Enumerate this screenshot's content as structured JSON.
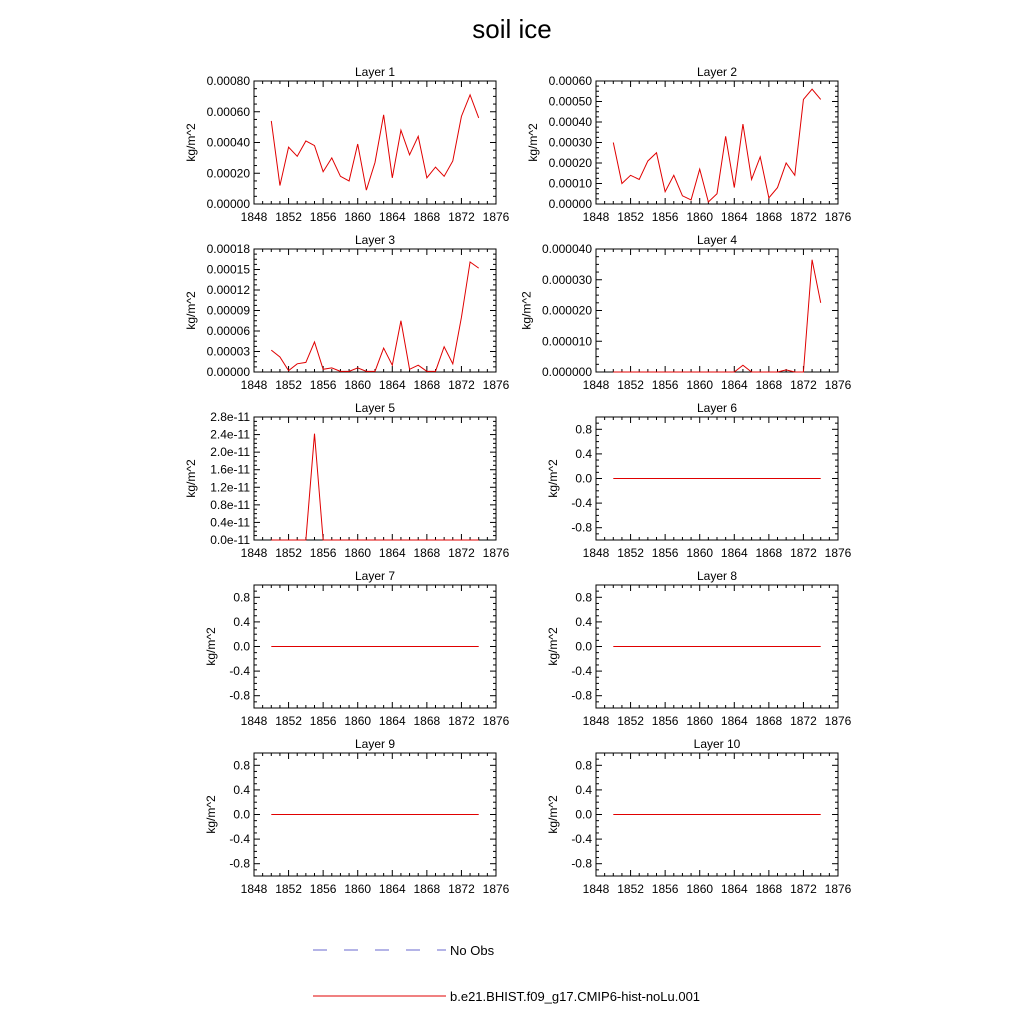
{
  "figure": {
    "title": "soil ice",
    "legend": [
      {
        "label": "No Obs",
        "color": "#6a6acf",
        "dash": true
      },
      {
        "label": "b.e21.BHIST.f09_g17.CMIP6-hist-noLu.001",
        "color": "#e00000",
        "dash": false
      }
    ]
  },
  "chart_data": [
    {
      "type": "line",
      "title": "Layer 1",
      "ylabel": "kg/m^2",
      "xlim": [
        1848,
        1876
      ],
      "xticks": [
        1848,
        1852,
        1856,
        1860,
        1864,
        1868,
        1872,
        1876
      ],
      "ylim": [
        0,
        0.0008
      ],
      "yticks": [
        "0.00000",
        "0.00020",
        "0.00040",
        "0.00060",
        "0.00080"
      ],
      "ytick_values": [
        0,
        0.0002,
        0.0004,
        0.0006,
        0.0008
      ],
      "series": [
        {
          "color": "#e00000",
          "x": [
            1850,
            1851,
            1852,
            1853,
            1854,
            1855,
            1856,
            1857,
            1858,
            1859,
            1860,
            1861,
            1862,
            1863,
            1864,
            1865,
            1866,
            1867,
            1868,
            1869,
            1870,
            1871,
            1872,
            1873,
            1874
          ],
          "y": [
            0.00054,
            0.00012,
            0.00037,
            0.00031,
            0.00041,
            0.00038,
            0.00021,
            0.0003,
            0.00018,
            0.00015,
            0.00039,
            9e-05,
            0.00027,
            0.00058,
            0.00017,
            0.00048,
            0.00032,
            0.00044,
            0.00017,
            0.00024,
            0.00018,
            0.00028,
            0.00057,
            0.00071,
            0.00056
          ]
        }
      ]
    },
    {
      "type": "line",
      "title": "Layer 2",
      "ylabel": "kg/m^2",
      "xlim": [
        1848,
        1876
      ],
      "xticks": [
        1848,
        1852,
        1856,
        1860,
        1864,
        1868,
        1872,
        1876
      ],
      "ylim": [
        0,
        0.0006
      ],
      "yticks": [
        "0.00000",
        "0.00010",
        "0.00020",
        "0.00030",
        "0.00040",
        "0.00050",
        "0.00060"
      ],
      "ytick_values": [
        0,
        0.0001,
        0.0002,
        0.0003,
        0.0004,
        0.0005,
        0.0006
      ],
      "series": [
        {
          "color": "#e00000",
          "x": [
            1850,
            1851,
            1852,
            1853,
            1854,
            1855,
            1856,
            1857,
            1858,
            1859,
            1860,
            1861,
            1862,
            1863,
            1864,
            1865,
            1866,
            1867,
            1868,
            1869,
            1870,
            1871,
            1872,
            1873,
            1874
          ],
          "y": [
            0.0003,
            0.0001,
            0.00014,
            0.00012,
            0.00021,
            0.00025,
            6e-05,
            0.00014,
            4e-05,
            2e-05,
            0.00017,
            1e-05,
            5e-05,
            0.00033,
            8e-05,
            0.00039,
            0.00012,
            0.00023,
            3e-05,
            8e-05,
            0.0002,
            0.00014,
            0.00051,
            0.00056,
            0.00051
          ]
        }
      ]
    },
    {
      "type": "line",
      "title": "Layer 3",
      "ylabel": "kg/m^2",
      "xlim": [
        1848,
        1876
      ],
      "xticks": [
        1848,
        1852,
        1856,
        1860,
        1864,
        1868,
        1872,
        1876
      ],
      "ylim": [
        0,
        0.00018
      ],
      "yticks": [
        "0.00000",
        "0.00003",
        "0.00006",
        "0.00009",
        "0.00012",
        "0.00015",
        "0.00018"
      ],
      "ytick_values": [
        0,
        3e-05,
        6e-05,
        9e-05,
        0.00012,
        0.00015,
        0.00018
      ],
      "series": [
        {
          "color": "#e00000",
          "x": [
            1850,
            1851,
            1852,
            1853,
            1854,
            1855,
            1856,
            1857,
            1858,
            1859,
            1860,
            1861,
            1862,
            1863,
            1864,
            1865,
            1866,
            1867,
            1868,
            1869,
            1870,
            1871,
            1872,
            1873,
            1874
          ],
          "y": [
            3.2e-05,
            2.2e-05,
            2e-06,
            1.2e-05,
            1.4e-05,
            4.4e-05,
            4e-06,
            6e-06,
            1e-06,
            1e-06,
            6e-06,
            1e-06,
            1e-06,
            3.5e-05,
            1e-05,
            7.5e-05,
            4e-06,
            1e-05,
            1e-06,
            1e-06,
            3.7e-05,
            1.2e-05,
            8e-05,
            0.000161,
            0.000152
          ]
        }
      ]
    },
    {
      "type": "line",
      "title": "Layer 4",
      "ylabel": "kg/m^2",
      "xlim": [
        1848,
        1876
      ],
      "xticks": [
        1848,
        1852,
        1856,
        1860,
        1864,
        1868,
        1872,
        1876
      ],
      "ylim": [
        0,
        4e-05
      ],
      "yticks": [
        "0.000000",
        "0.000010",
        "0.000020",
        "0.000030",
        "0.000040"
      ],
      "ytick_values": [
        0,
        1e-05,
        2e-05,
        3e-05,
        4e-05
      ],
      "series": [
        {
          "color": "#e00000",
          "x": [
            1850,
            1851,
            1852,
            1853,
            1854,
            1855,
            1856,
            1857,
            1858,
            1859,
            1860,
            1861,
            1862,
            1863,
            1864,
            1865,
            1866,
            1867,
            1868,
            1869,
            1870,
            1871,
            1872,
            1873,
            1874
          ],
          "y": [
            0,
            0,
            0,
            0,
            0,
            0,
            0,
            0,
            0,
            0,
            0,
            0,
            0,
            0,
            0,
            2.2e-06,
            0,
            0,
            0,
            0,
            7e-07,
            0,
            0,
            3.65e-05,
            2.25e-05
          ]
        }
      ]
    },
    {
      "type": "line",
      "title": "Layer 5",
      "ylabel": "kg/m^2",
      "xlim": [
        1848,
        1876
      ],
      "xticks": [
        1848,
        1852,
        1856,
        1860,
        1864,
        1868,
        1872,
        1876
      ],
      "ylim": [
        0,
        2.8e-11
      ],
      "yticks": [
        "0.0e-11",
        "0.4e-11",
        "0.8e-11",
        "1.2e-11",
        "1.6e-11",
        "2.0e-11",
        "2.4e-11",
        "2.8e-11"
      ],
      "ytick_values": [
        0,
        4e-12,
        8e-12,
        1.2e-11,
        1.6e-11,
        2e-11,
        2.4e-11,
        2.8e-11
      ],
      "series": [
        {
          "color": "#e00000",
          "x": [
            1850,
            1851,
            1852,
            1853,
            1854,
            1855,
            1856,
            1857,
            1858,
            1859,
            1860,
            1861,
            1862,
            1863,
            1864,
            1865,
            1866,
            1867,
            1868,
            1869,
            1870,
            1871,
            1872,
            1873,
            1874
          ],
          "y": [
            0,
            0,
            0,
            0,
            0,
            2.42e-11,
            0,
            0,
            0,
            0,
            0,
            0,
            0,
            0,
            0,
            0,
            0,
            0,
            0,
            0,
            0,
            0,
            0,
            0,
            0
          ]
        }
      ]
    },
    {
      "type": "line",
      "title": "Layer 6",
      "ylabel": "kg/m^2",
      "xlim": [
        1848,
        1876
      ],
      "xticks": [
        1848,
        1852,
        1856,
        1860,
        1864,
        1868,
        1872,
        1876
      ],
      "ylim": [
        -1,
        1
      ],
      "yticks": [
        "-0.8",
        "-0.4",
        "0.0",
        "0.4",
        "0.8"
      ],
      "ytick_values": [
        -0.8,
        -0.4,
        0,
        0.4,
        0.8
      ],
      "series": [
        {
          "color": "#e00000",
          "x": [
            1850,
            1874
          ],
          "y": [
            0,
            0
          ]
        }
      ]
    },
    {
      "type": "line",
      "title": "Layer 7",
      "ylabel": "kg/m^2",
      "xlim": [
        1848,
        1876
      ],
      "xticks": [
        1848,
        1852,
        1856,
        1860,
        1864,
        1868,
        1872,
        1876
      ],
      "ylim": [
        -1,
        1
      ],
      "yticks": [
        "-0.8",
        "-0.4",
        "0.0",
        "0.4",
        "0.8"
      ],
      "ytick_values": [
        -0.8,
        -0.4,
        0,
        0.4,
        0.8
      ],
      "series": [
        {
          "color": "#e00000",
          "x": [
            1850,
            1874
          ],
          "y": [
            0,
            0
          ]
        }
      ]
    },
    {
      "type": "line",
      "title": "Layer 8",
      "ylabel": "kg/m^2",
      "xlim": [
        1848,
        1876
      ],
      "xticks": [
        1848,
        1852,
        1856,
        1860,
        1864,
        1868,
        1872,
        1876
      ],
      "ylim": [
        -1,
        1
      ],
      "yticks": [
        "-0.8",
        "-0.4",
        "0.0",
        "0.4",
        "0.8"
      ],
      "ytick_values": [
        -0.8,
        -0.4,
        0,
        0.4,
        0.8
      ],
      "series": [
        {
          "color": "#e00000",
          "x": [
            1850,
            1874
          ],
          "y": [
            0,
            0
          ]
        }
      ]
    },
    {
      "type": "line",
      "title": "Layer 9",
      "ylabel": "kg/m^2",
      "xlim": [
        1848,
        1876
      ],
      "xticks": [
        1848,
        1852,
        1856,
        1860,
        1864,
        1868,
        1872,
        1876
      ],
      "ylim": [
        -1,
        1
      ],
      "yticks": [
        "-0.8",
        "-0.4",
        "0.0",
        "0.4",
        "0.8"
      ],
      "ytick_values": [
        -0.8,
        -0.4,
        0,
        0.4,
        0.8
      ],
      "series": [
        {
          "color": "#e00000",
          "x": [
            1850,
            1874
          ],
          "y": [
            0,
            0
          ]
        }
      ]
    },
    {
      "type": "line",
      "title": "Layer 10",
      "ylabel": "kg/m^2",
      "xlim": [
        1848,
        1876
      ],
      "xticks": [
        1848,
        1852,
        1856,
        1860,
        1864,
        1868,
        1872,
        1876
      ],
      "ylim": [
        -1,
        1
      ],
      "yticks": [
        "-0.8",
        "-0.4",
        "0.0",
        "0.4",
        "0.8"
      ],
      "ytick_values": [
        -0.8,
        -0.4,
        0,
        0.4,
        0.8
      ],
      "series": [
        {
          "color": "#e00000",
          "x": [
            1850,
            1874
          ],
          "y": [
            0,
            0
          ]
        }
      ]
    }
  ]
}
